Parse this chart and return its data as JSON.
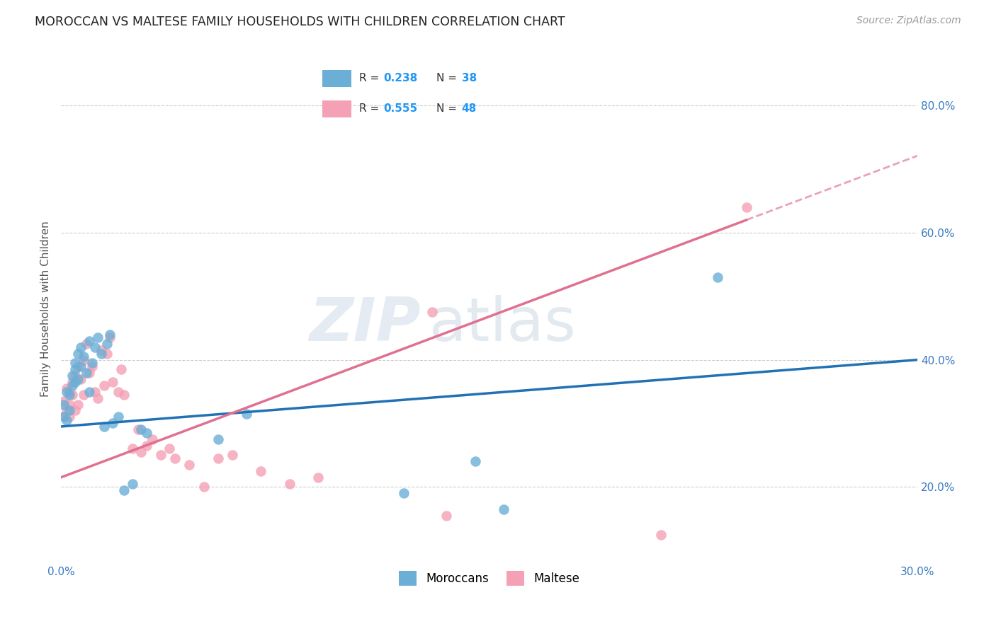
{
  "title": "MOROCCAN VS MALTESE FAMILY HOUSEHOLDS WITH CHILDREN CORRELATION CHART",
  "source": "Source: ZipAtlas.com",
  "ylabel": "Family Households with Children",
  "xlim": [
    0.0,
    0.3
  ],
  "ylim": [
    0.08,
    0.88
  ],
  "x_ticks": [
    0.0,
    0.05,
    0.1,
    0.15,
    0.2,
    0.25,
    0.3
  ],
  "x_tick_labels": [
    "0.0%",
    "",
    "",
    "",
    "",
    "",
    "30.0%"
  ],
  "y_ticks": [
    0.2,
    0.4,
    0.6,
    0.8
  ],
  "y_tick_labels": [
    "20.0%",
    "40.0%",
    "60.0%",
    "80.0%"
  ],
  "moroccan_R": 0.238,
  "moroccan_N": 38,
  "maltese_R": 0.555,
  "maltese_N": 48,
  "moroccan_color": "#6baed6",
  "maltese_color": "#f4a0b5",
  "moroccan_line_color": "#2171b5",
  "maltese_line_color": "#e07090",
  "watermark_zip": "ZIP",
  "watermark_atlas": "atlas",
  "moroccan_x": [
    0.001,
    0.001,
    0.002,
    0.002,
    0.003,
    0.003,
    0.004,
    0.004,
    0.005,
    0.005,
    0.005,
    0.006,
    0.006,
    0.007,
    0.007,
    0.008,
    0.009,
    0.01,
    0.01,
    0.011,
    0.012,
    0.013,
    0.014,
    0.015,
    0.016,
    0.017,
    0.018,
    0.02,
    0.022,
    0.025,
    0.028,
    0.03,
    0.055,
    0.065,
    0.12,
    0.145,
    0.155,
    0.23
  ],
  "moroccan_y": [
    0.31,
    0.33,
    0.305,
    0.35,
    0.32,
    0.345,
    0.36,
    0.375,
    0.365,
    0.385,
    0.395,
    0.37,
    0.41,
    0.39,
    0.42,
    0.405,
    0.38,
    0.35,
    0.43,
    0.395,
    0.42,
    0.435,
    0.41,
    0.295,
    0.425,
    0.44,
    0.3,
    0.31,
    0.195,
    0.205,
    0.29,
    0.285,
    0.275,
    0.315,
    0.19,
    0.24,
    0.165,
    0.53
  ],
  "maltese_x": [
    0.001,
    0.001,
    0.002,
    0.002,
    0.003,
    0.003,
    0.003,
    0.004,
    0.004,
    0.005,
    0.005,
    0.006,
    0.006,
    0.007,
    0.008,
    0.008,
    0.009,
    0.01,
    0.011,
    0.012,
    0.013,
    0.014,
    0.015,
    0.016,
    0.017,
    0.018,
    0.02,
    0.021,
    0.022,
    0.025,
    0.027,
    0.028,
    0.03,
    0.032,
    0.035,
    0.038,
    0.04,
    0.045,
    0.05,
    0.055,
    0.06,
    0.07,
    0.08,
    0.09,
    0.13,
    0.135,
    0.21,
    0.24
  ],
  "maltese_y": [
    0.31,
    0.335,
    0.32,
    0.355,
    0.33,
    0.35,
    0.31,
    0.365,
    0.345,
    0.375,
    0.32,
    0.39,
    0.33,
    0.37,
    0.345,
    0.4,
    0.425,
    0.38,
    0.39,
    0.35,
    0.34,
    0.415,
    0.36,
    0.41,
    0.435,
    0.365,
    0.35,
    0.385,
    0.345,
    0.26,
    0.29,
    0.255,
    0.265,
    0.275,
    0.25,
    0.26,
    0.245,
    0.235,
    0.2,
    0.245,
    0.25,
    0.225,
    0.205,
    0.215,
    0.475,
    0.155,
    0.125,
    0.64
  ],
  "maltese_line_x_start": 0.0,
  "maltese_line_x_solid_end": 0.24,
  "maltese_line_x_dash_end": 0.3
}
